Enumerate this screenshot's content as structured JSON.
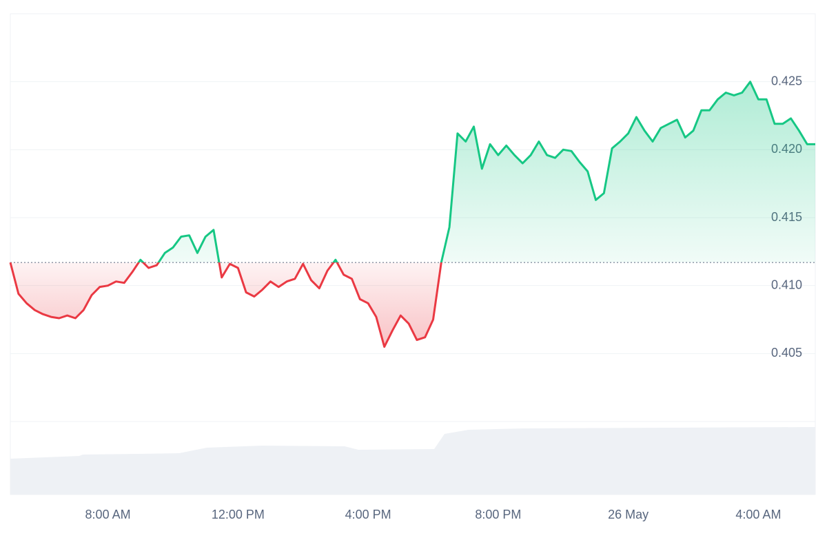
{
  "chart_data": {
    "type": "line",
    "x": [
      5,
      5.25,
      5.5,
      5.75,
      6,
      6.25,
      6.5,
      6.75,
      7,
      7.25,
      7.5,
      7.75,
      8,
      8.25,
      8.5,
      8.75,
      9,
      9.25,
      9.5,
      9.75,
      10,
      10.25,
      10.5,
      10.75,
      11,
      11.25,
      11.5,
      11.75,
      12,
      12.25,
      12.5,
      12.75,
      13,
      13.25,
      13.5,
      13.75,
      14,
      14.25,
      14.5,
      14.75,
      15,
      15.25,
      15.5,
      15.75,
      16,
      16.25,
      16.5,
      16.75,
      17,
      17.25,
      17.5,
      17.75,
      18,
      18.25,
      18.5,
      18.75,
      19,
      19.25,
      19.5,
      19.75,
      20,
      20.25,
      20.5,
      20.75,
      21,
      21.25,
      21.5,
      21.75,
      22,
      22.25,
      22.5,
      22.75,
      23,
      23.25,
      23.5,
      23.75,
      24,
      24.25,
      24.5,
      24.75,
      25,
      25.25,
      25.5,
      25.75,
      26,
      26.25,
      26.5,
      26.75,
      27,
      27.25,
      27.5,
      27.75,
      28,
      28.25,
      28.5,
      28.75,
      29,
      29.25,
      29.5,
      29.75
    ],
    "values": [
      0.4117,
      0.4094,
      0.4087,
      0.4082,
      0.4079,
      0.4077,
      0.4076,
      0.4078,
      0.4076,
      0.4082,
      0.4093,
      0.4099,
      0.41,
      0.4103,
      0.4102,
      0.411,
      0.4119,
      0.4113,
      0.4115,
      0.4124,
      0.4128,
      0.4136,
      0.4137,
      0.4124,
      0.4136,
      0.4141,
      0.4106,
      0.4116,
      0.4113,
      0.4095,
      0.4092,
      0.4097,
      0.4103,
      0.4099,
      0.4103,
      0.4105,
      0.4116,
      0.4104,
      0.4098,
      0.4111,
      0.4119,
      0.4108,
      0.4105,
      0.409,
      0.4087,
      0.4077,
      0.4055,
      0.4067,
      0.4078,
      0.4072,
      0.406,
      0.4062,
      0.4075,
      0.4117,
      0.4143,
      0.4212,
      0.4206,
      0.4217,
      0.4186,
      0.4204,
      0.4196,
      0.4203,
      0.4196,
      0.419,
      0.4196,
      0.4206,
      0.4196,
      0.4194,
      0.42,
      0.4199,
      0.4191,
      0.4184,
      0.4163,
      0.4168,
      0.4201,
      0.4206,
      0.4212,
      0.4224,
      0.4214,
      0.4206,
      0.4216,
      0.4219,
      0.4222,
      0.4209,
      0.4214,
      0.4229,
      0.4229,
      0.4237,
      0.4242,
      0.424,
      0.4242,
      0.425,
      0.4237,
      0.4237,
      0.4219,
      0.4219,
      0.4223,
      0.4214,
      0.4204,
      0.4204
    ],
    "baseline": 0.4117,
    "colors": {
      "up": "#16c784",
      "down": "#ea3943"
    },
    "xlim": [
      5,
      29.75
    ],
    "ylim": [
      0.4,
      0.43
    ],
    "xticks": [
      {
        "value": 8,
        "label": "8:00 AM"
      },
      {
        "value": 12,
        "label": "12:00 PM"
      },
      {
        "value": 16,
        "label": "4:00 PM"
      },
      {
        "value": 20,
        "label": "8:00 PM"
      },
      {
        "value": 24,
        "label": "26 May"
      },
      {
        "value": 28,
        "label": "4:00 AM"
      }
    ],
    "yticks": [
      0.405,
      {
        "value": 0.41,
        "label": "0.410"
      },
      0.415,
      {
        "value": 0.42,
        "label": "0.420"
      },
      0.425
    ],
    "grid": true
  }
}
